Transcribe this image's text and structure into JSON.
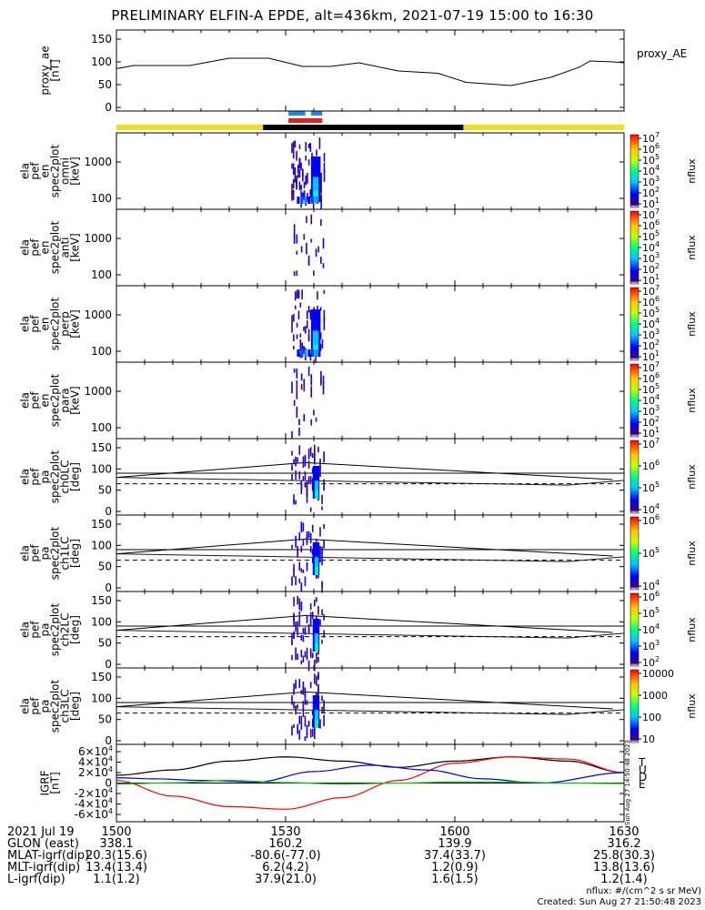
{
  "title": "PRELIMINARY ELFIN-A EPDE, alt=436km, 2021-07-19 15:00 to 16:30",
  "colors": {
    "sunlit_bar": "#f5dc1e",
    "eclipse_bar": "#000000",
    "science_zone_top": "#1a8ce6",
    "science_zone_bottom": "#e61e1e",
    "bx": "#ff0000",
    "by": "#ff0000",
    "bz": "#0000ff",
    "be": "#00cc00",
    "b_total": "#000000"
  },
  "panels": [
    {
      "id": "proxy_ae",
      "ylabel_lines": [
        "proxy_ae",
        "[nT]"
      ],
      "right_label": "proxy_AE",
      "yticks": [
        "0",
        "50",
        "100",
        "150"
      ]
    },
    {
      "id": "en_omni",
      "ylabel_lines": [
        "ela",
        "pef",
        "en",
        "spec2plot",
        "omni",
        "[keV]"
      ],
      "yticks": [
        "100",
        "1000"
      ],
      "cbar_ticks": [
        "10^1",
        "10^2",
        "10^3",
        "10^4",
        "10^5",
        "10^6",
        "10^7"
      ],
      "cbar_label": "nflux"
    },
    {
      "id": "en_anti",
      "ylabel_lines": [
        "ela",
        "pef",
        "en",
        "spec2plot",
        "anti",
        "[keV]"
      ],
      "yticks": [
        "100",
        "1000"
      ],
      "cbar_ticks": [
        "10^1",
        "10^2",
        "10^3",
        "10^4",
        "10^5",
        "10^6",
        "10^7"
      ],
      "cbar_label": "nflux"
    },
    {
      "id": "en_perp",
      "ylabel_lines": [
        "ela",
        "pef",
        "en",
        "spec2plot",
        "perp",
        "[keV]"
      ],
      "yticks": [
        "100",
        "1000"
      ],
      "cbar_ticks": [
        "10^1",
        "10^2",
        "10^3",
        "10^4",
        "10^5",
        "10^6",
        "10^7"
      ],
      "cbar_label": "nflux"
    },
    {
      "id": "en_para",
      "ylabel_lines": [
        "ela",
        "pef",
        "en",
        "spec2plot",
        "para",
        "[keV]"
      ],
      "yticks": [
        "100",
        "1000"
      ],
      "cbar_ticks": [
        "10^1",
        "10^2",
        "10^3",
        "10^4",
        "10^5",
        "10^6",
        "10^7"
      ],
      "cbar_label": "nflux"
    },
    {
      "id": "pa_ch0",
      "ylabel_lines": [
        "ela",
        "pef",
        "pa",
        "spec2plot",
        "ch0LC",
        "[deg]"
      ],
      "yticks": [
        "0",
        "50",
        "100",
        "150"
      ],
      "cbar_ticks": [
        "10^4",
        "10^5",
        "10^6",
        "10^7"
      ],
      "cbar_label": "nflux"
    },
    {
      "id": "pa_ch1",
      "ylabel_lines": [
        "ela",
        "pef",
        "pa",
        "spec2plot",
        "ch1LC",
        "[deg]"
      ],
      "yticks": [
        "0",
        "50",
        "100",
        "150"
      ],
      "cbar_ticks": [
        "10^4",
        "10^5",
        "10^6"
      ],
      "cbar_label": "nflux"
    },
    {
      "id": "pa_ch2",
      "ylabel_lines": [
        "ela",
        "pef",
        "pa",
        "spec2plot",
        "ch2LC",
        "[deg]"
      ],
      "yticks": [
        "0",
        "50",
        "100",
        "150"
      ],
      "cbar_ticks": [
        "10^2",
        "10^3",
        "10^4",
        "10^5",
        "10^6"
      ],
      "cbar_label": "nflux"
    },
    {
      "id": "pa_ch3",
      "ylabel_lines": [
        "ela",
        "pef",
        "pa",
        "spec2plot",
        "ch3LC",
        "[deg]"
      ],
      "yticks": [
        "0",
        "50",
        "100",
        "150"
      ],
      "cbar_ticks": [
        "10",
        "100",
        "1000",
        "10000"
      ],
      "cbar_label": "nflux"
    },
    {
      "id": "bigrf",
      "ylabel_lines": [
        "IGRF",
        "[nT]"
      ],
      "yticks": [
        "-6×10^4",
        "-4×10^4",
        "-2×10^4",
        "0",
        "2×10^4",
        "4×10^4",
        "6×10^4"
      ],
      "legend": [
        "T",
        "U",
        "D",
        "E"
      ],
      "side_stamp": "Sun Aug 27 14:50:48 2023"
    }
  ],
  "footer": {
    "rows": [
      {
        "label": "2021 Jul 19",
        "values": [
          "1500",
          "1530",
          "1600",
          "1630"
        ]
      },
      {
        "label": "GLON (east)",
        "values": [
          "338.1",
          "160.2",
          "139.9",
          "316.2"
        ]
      },
      {
        "label": "MLAT-igrf(dip)",
        "values": [
          "20.3(15.6)",
          "-80.6(-77.0)",
          "37.4(33.7)",
          "25.8(30.3)"
        ]
      },
      {
        "label": "MLT-igrf(dip)",
        "values": [
          "13.4(13.4)",
          "6.2(4.2)",
          "1.2(0.9)",
          "13.8(13.6)"
        ]
      },
      {
        "label": "L-igrf(dip)",
        "values": [
          "1.1(1.2)",
          "37.9(21.0)",
          "1.6(1.5)",
          "1.2(1.4)"
        ]
      }
    ],
    "unit_note": "nflux: #/(cm^2 s sr MeV)",
    "created": "Created: Sun Aug 27 21:50:48 2023"
  },
  "chart_data": {
    "type": "line",
    "x_range": [
      "2021-07-19 15:00",
      "2021-07-19 16:30"
    ],
    "proxy_ae": {
      "name": "proxy_AE",
      "ylim": [
        0,
        150
      ],
      "x_minutes": [
        0,
        3,
        13,
        20,
        27,
        33,
        38,
        43,
        50,
        57,
        62,
        70,
        77,
        82,
        84,
        88,
        90
      ],
      "values": [
        85,
        92,
        92,
        108,
        108,
        90,
        90,
        98,
        80,
        75,
        55,
        48,
        66,
        88,
        102,
        100,
        98
      ]
    },
    "pa_reference_lines": {
      "solid_start": 80,
      "solid_peak": 115,
      "solid_end": 75,
      "flat": 90,
      "dashed": 65
    },
    "igrf": {
      "ylim": [
        -60000,
        60000
      ],
      "series": [
        {
          "name": "T",
          "x_minutes": [
            0,
            10,
            20,
            30,
            40,
            50,
            60,
            70,
            80,
            90
          ],
          "values": [
            15000,
            25000,
            42000,
            50000,
            42000,
            30000,
            42000,
            50000,
            42000,
            20000
          ]
        },
        {
          "name": "U",
          "x_minutes": [
            0,
            10,
            20,
            30,
            40,
            50,
            60,
            70,
            80,
            90
          ],
          "values": [
            5000,
            -25000,
            -45000,
            -50000,
            -28000,
            5000,
            38000,
            50000,
            46000,
            20000
          ]
        },
        {
          "name": "D",
          "x_minutes": [
            0,
            7,
            15,
            25,
            35,
            45,
            55,
            65,
            75,
            90
          ],
          "values": [
            10000,
            8000,
            5000,
            2000,
            22000,
            34000,
            25000,
            8000,
            0,
            20000
          ]
        },
        {
          "name": "E",
          "x_minutes": [
            0,
            10,
            20,
            30,
            40,
            50,
            60,
            70,
            80,
            90
          ],
          "values": [
            -2000,
            500,
            5000,
            1000,
            -2000,
            0,
            2000,
            2000,
            0,
            -1000
          ]
        }
      ]
    }
  }
}
